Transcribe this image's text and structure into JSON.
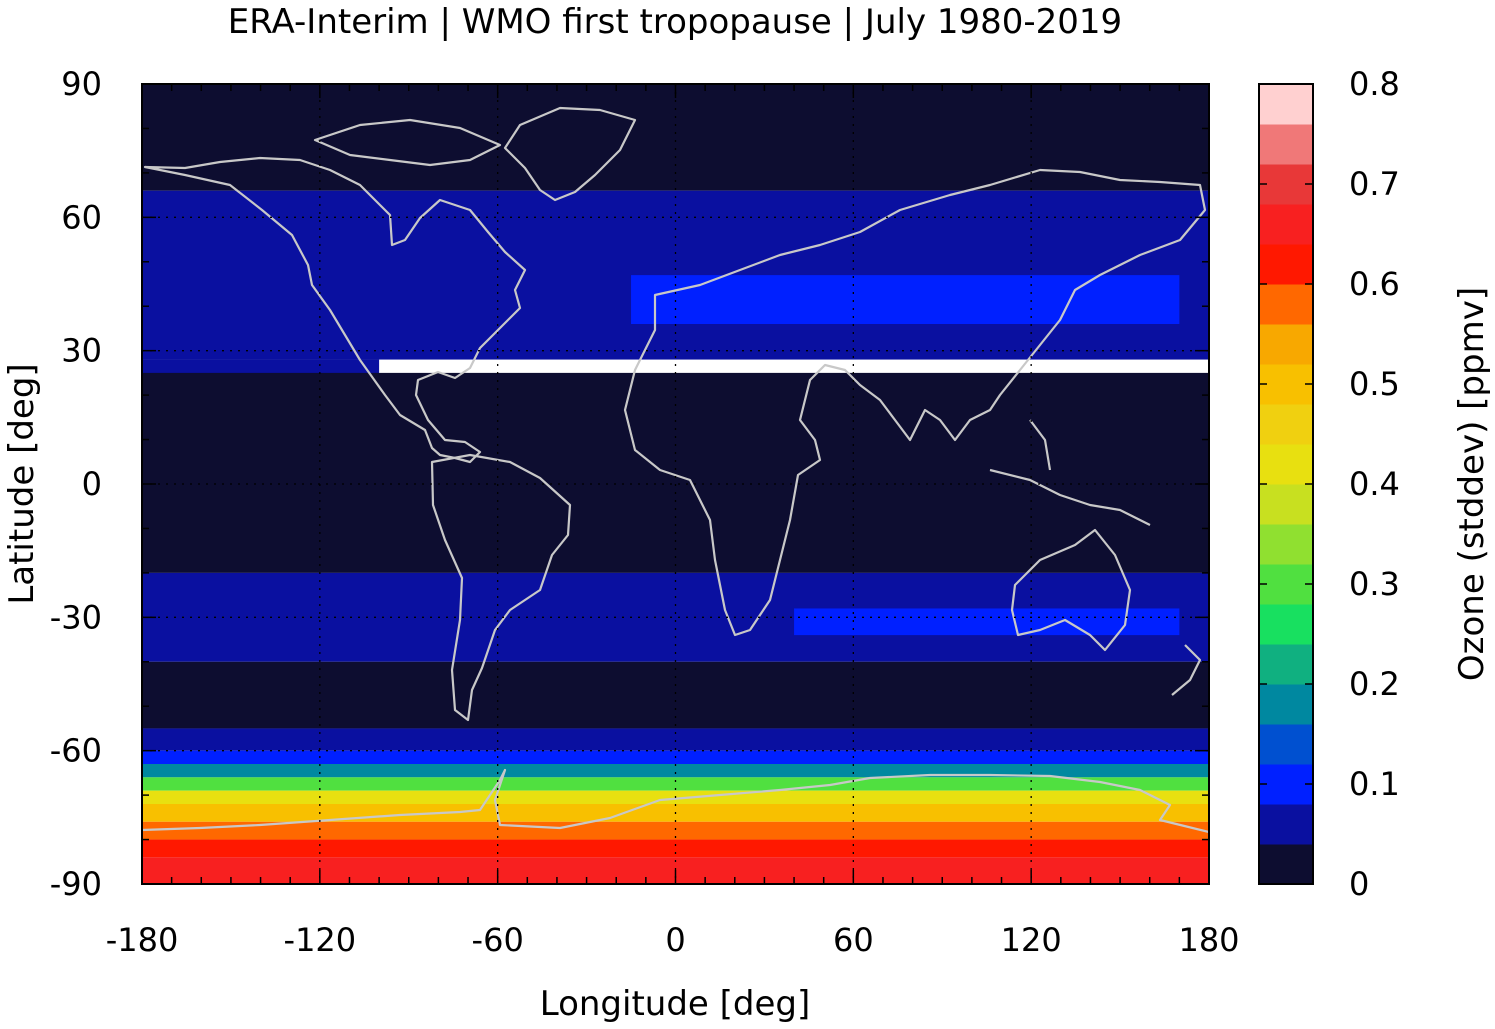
{
  "chart_data": {
    "type": "heatmap",
    "title": "ERA-Interim | WMO first tropopause | July 1980-2019",
    "xlabel": "Longitude [deg]",
    "ylabel": "Latitude [deg]",
    "colorbar_label": "Ozone (stddev) [ppmv]",
    "xlim": [
      -180,
      180
    ],
    "ylim": [
      -90,
      90
    ],
    "xticks": [
      -180,
      -120,
      -60,
      0,
      60,
      120,
      180
    ],
    "xtick_labels": [
      "-180",
      "-120",
      "-60",
      "0",
      "60",
      "120",
      "180"
    ],
    "yticks": [
      90,
      60,
      30,
      0,
      -30,
      -60,
      -90
    ],
    "ytick_labels": [
      "90",
      "60",
      "30",
      "0",
      "-30",
      "-60",
      "-90"
    ],
    "colorbar_range": [
      0,
      0.8
    ],
    "colorbar_ticks": [
      0,
      0.1,
      0.2,
      0.3,
      0.4,
      0.5,
      0.6,
      0.7,
      0.8
    ],
    "colorbar_tick_labels": [
      "0",
      "0.1",
      "0.2",
      "0.3",
      "0.4",
      "0.5",
      "0.6",
      "0.7",
      "0.8"
    ],
    "colorbar_levels": [
      {
        "from": 0.0,
        "to": 0.04,
        "color": "#0d0d30"
      },
      {
        "from": 0.04,
        "to": 0.08,
        "color": "#0a10a0"
      },
      {
        "from": 0.08,
        "to": 0.12,
        "color": "#0020ff"
      },
      {
        "from": 0.12,
        "to": 0.16,
        "color": "#0050d0"
      },
      {
        "from": 0.16,
        "to": 0.2,
        "color": "#0088a0"
      },
      {
        "from": 0.2,
        "to": 0.24,
        "color": "#10b080"
      },
      {
        "from": 0.24,
        "to": 0.28,
        "color": "#18e060"
      },
      {
        "from": 0.28,
        "to": 0.32,
        "color": "#50e040"
      },
      {
        "from": 0.32,
        "to": 0.36,
        "color": "#90e030"
      },
      {
        "from": 0.36,
        "to": 0.4,
        "color": "#c8e020"
      },
      {
        "from": 0.4,
        "to": 0.44,
        "color": "#e8e010"
      },
      {
        "from": 0.44,
        "to": 0.48,
        "color": "#f0d010"
      },
      {
        "from": 0.48,
        "to": 0.52,
        "color": "#f8c000"
      },
      {
        "from": 0.52,
        "to": 0.56,
        "color": "#f8a800"
      },
      {
        "from": 0.56,
        "to": 0.6,
        "color": "#ff6800"
      },
      {
        "from": 0.6,
        "to": 0.64,
        "color": "#ff1800"
      },
      {
        "from": 0.64,
        "to": 0.68,
        "color": "#f82020"
      },
      {
        "from": 0.68,
        "to": 0.72,
        "color": "#e83838"
      },
      {
        "from": 0.72,
        "to": 0.76,
        "color": "#f07878"
      },
      {
        "from": 0.76,
        "to": 0.8,
        "color": "#ffd0d0"
      }
    ],
    "bands": [
      {
        "lat_from": 66,
        "lat_to": 90,
        "value": 0.02
      },
      {
        "lat_from": 28,
        "lat_to": 66,
        "value": 0.06
      },
      {
        "lat_from": 42,
        "lat_to": 44,
        "lon_from": -12,
        "lon_to": 160,
        "value": 0.1
      },
      {
        "lat_from": 36,
        "lat_to": 47,
        "lon_from": -15,
        "lon_to": 170,
        "value": 0.09
      },
      {
        "lat_from": 22,
        "lat_to": 28,
        "lon_from": -180,
        "lon_to": -100,
        "value": 0.06
      },
      {
        "lat_from": 5,
        "lat_to": 15,
        "lon_from": 65,
        "lon_to": 130,
        "value": 0.06
      },
      {
        "lat_from": -20,
        "lat_to": 25,
        "value": 0.02
      },
      {
        "lat_from": -40,
        "lat_to": -20,
        "value": 0.06
      },
      {
        "lat_from": -34,
        "lat_to": -28,
        "lon_from": 40,
        "lon_to": 170,
        "value": 0.09
      },
      {
        "lat_from": -55,
        "lat_to": -40,
        "value": 0.03
      },
      {
        "lat_from": -60,
        "lat_to": -55,
        "value": 0.06
      },
      {
        "lat_from": -63,
        "lat_to": -60,
        "value": 0.1
      },
      {
        "lat_from": -66,
        "lat_to": -63,
        "value": 0.18
      },
      {
        "lat_from": -69,
        "lat_to": -66,
        "value": 0.3
      },
      {
        "lat_from": -72,
        "lat_to": -69,
        "value": 0.42
      },
      {
        "lat_from": -76,
        "lat_to": -72,
        "value": 0.5
      },
      {
        "lat_from": -80,
        "lat_to": -76,
        "value": 0.58
      },
      {
        "lat_from": -84,
        "lat_to": -80,
        "value": 0.62
      },
      {
        "lat_from": -90,
        "lat_to": -84,
        "value": 0.66
      }
    ]
  }
}
